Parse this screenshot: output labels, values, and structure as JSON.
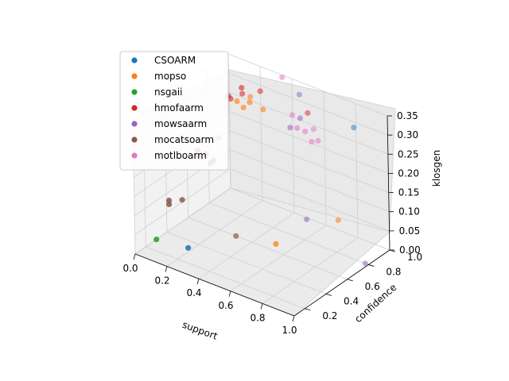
{
  "chart_data": {
    "type": "scatter",
    "projection": "3d",
    "xlabel": "support",
    "ylabel": "confidence",
    "zlabel": "klosgen",
    "xlim": [
      0.0,
      1.0
    ],
    "ylim": [
      0.1,
      1.0
    ],
    "zlim": [
      0.0,
      0.35
    ],
    "x_ticks": [
      "0.0",
      "0.2",
      "0.4",
      "0.6",
      "0.8",
      "1.0"
    ],
    "y_ticks": [
      "0.2",
      "0.4",
      "0.6",
      "0.8",
      "1.0"
    ],
    "z_ticks": [
      "0.00",
      "0.05",
      "0.10",
      "0.15",
      "0.20",
      "0.25",
      "0.30",
      "0.35"
    ],
    "grid": true,
    "legend_position": "top-left",
    "series": [
      {
        "name": "CSOARM",
        "color": "#1f77b4",
        "points": [
          [
            0.82,
            0.95,
            0.3
          ],
          [
            0.2,
            0.3,
            0.01
          ]
        ]
      },
      {
        "name": "mopso",
        "color": "#ff7f0e",
        "points": [
          [
            0.62,
            0.5,
            0.05
          ],
          [
            0.8,
            0.82,
            0.08
          ],
          [
            0.22,
            0.75,
            0.31
          ],
          [
            0.3,
            0.75,
            0.32
          ],
          [
            0.35,
            0.8,
            0.3
          ],
          [
            0.27,
            0.8,
            0.32
          ],
          [
            0.26,
            0.75,
            0.3
          ]
        ]
      },
      {
        "name": "nsgaii",
        "color": "#2ca02c",
        "points": [
          [
            0.0,
            0.3,
            0.0
          ]
        ]
      },
      {
        "name": "hmofaarm",
        "color": "#d62728",
        "points": [
          [
            0.25,
            0.75,
            0.35
          ],
          [
            0.2,
            0.7,
            0.33
          ],
          [
            0.18,
            0.75,
            0.31
          ],
          [
            0.22,
            0.8,
            0.32
          ],
          [
            0.55,
            0.92,
            0.3
          ],
          [
            0.3,
            0.85,
            0.33
          ],
          [
            0.1,
            0.55,
            0.2
          ]
        ]
      },
      {
        "name": "mowsaarm",
        "color": "#9467bd",
        "points": [
          [
            0.98,
            0.8,
            0.0
          ],
          [
            0.5,
            0.92,
            0.34
          ],
          [
            0.55,
            0.85,
            0.3
          ],
          [
            0.52,
            0.8,
            0.28
          ],
          [
            0.6,
            0.82,
            0.05
          ]
        ]
      },
      {
        "name": "mocatsoarm",
        "color": "#8c564b",
        "points": [
          [
            0.05,
            0.35,
            0.1
          ],
          [
            0.1,
            0.4,
            0.1
          ],
          [
            0.05,
            0.35,
            0.09
          ],
          [
            0.3,
            0.6,
            0.0
          ],
          [
            0.12,
            0.5,
            0.2
          ],
          [
            0.15,
            0.55,
            0.2
          ],
          [
            0.18,
            0.55,
            0.18
          ],
          [
            0.2,
            0.55,
            0.19
          ]
        ]
      },
      {
        "name": "motlboarm",
        "color": "#e377c2",
        "points": [
          [
            0.42,
            0.88,
            0.38
          ],
          [
            0.5,
            0.85,
            0.3
          ],
          [
            0.6,
            0.9,
            0.27
          ],
          [
            0.55,
            0.82,
            0.28
          ],
          [
            0.62,
            0.85,
            0.25
          ],
          [
            0.64,
            0.88,
            0.25
          ],
          [
            0.58,
            0.85,
            0.27
          ],
          [
            0.15,
            0.5,
            0.2
          ],
          [
            0.2,
            0.6,
            0.24
          ]
        ]
      }
    ]
  }
}
